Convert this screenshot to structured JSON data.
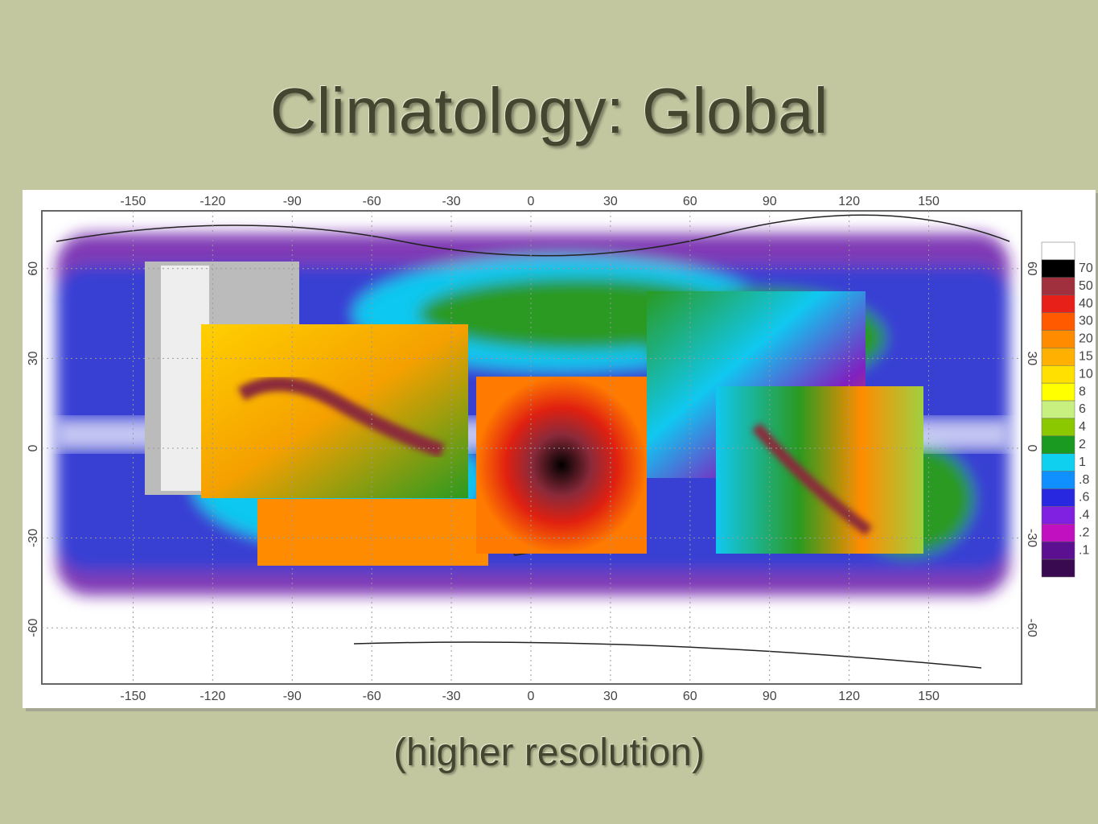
{
  "title": "Climatology:  Global",
  "subtitle": "(higher resolution)",
  "map": {
    "x_ticks": [
      -150,
      -120,
      -90,
      -60,
      -30,
      0,
      30,
      60,
      90,
      120,
      150
    ],
    "y_ticks": [
      60,
      30,
      0,
      -30,
      -60
    ],
    "colorbar_labels": [
      70,
      50,
      40,
      30,
      20,
      15,
      10,
      8,
      6,
      4,
      2,
      1,
      {
        "value": 0.8,
        "label": ".8"
      },
      {
        "value": 0.6,
        "label": ".6"
      },
      {
        "value": 0.4,
        "label": ".4"
      },
      {
        "value": 0.2,
        "label": ".2"
      },
      {
        "value": 0.1,
        "label": ".1"
      }
    ]
  }
}
